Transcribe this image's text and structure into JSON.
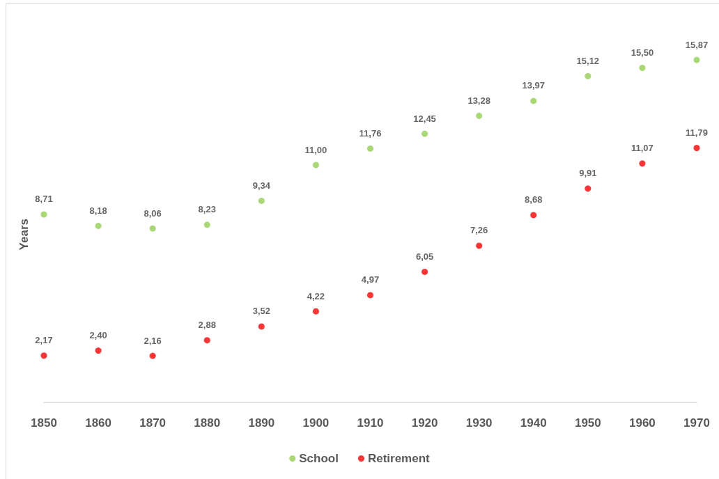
{
  "chart_data": {
    "type": "scatter",
    "ylabel": "Years",
    "categories": [
      "1850",
      "1860",
      "1870",
      "1880",
      "1890",
      "1900",
      "1910",
      "1920",
      "1930",
      "1940",
      "1950",
      "1960",
      "1970"
    ],
    "series": [
      {
        "name": "School",
        "color": "#92d050",
        "values": [
          8.71,
          8.18,
          8.06,
          8.23,
          9.34,
          11.0,
          11.76,
          12.45,
          13.28,
          13.97,
          15.12,
          15.5,
          15.87
        ],
        "value_labels": [
          "8,71",
          "8,18",
          "8,06",
          "8,23",
          "9,34",
          "11,00",
          "11,76",
          "12,45",
          "13,28",
          "13,97",
          "15,12",
          "15,50",
          "15,87"
        ]
      },
      {
        "name": "Retirement",
        "color": "#ff0000",
        "values": [
          2.17,
          2.4,
          2.16,
          2.88,
          3.52,
          4.22,
          4.97,
          6.05,
          7.26,
          8.68,
          9.91,
          11.07,
          11.79
        ],
        "value_labels": [
          "2,17",
          "2,40",
          "2,16",
          "2,88",
          "3,52",
          "4,22",
          "4,97",
          "6,05",
          "7,26",
          "8,68",
          "9,91",
          "11,07",
          "11,79"
        ]
      }
    ],
    "tick_labels": "x",
    "grid": false,
    "legend": "bottom",
    "marker": "circle"
  }
}
